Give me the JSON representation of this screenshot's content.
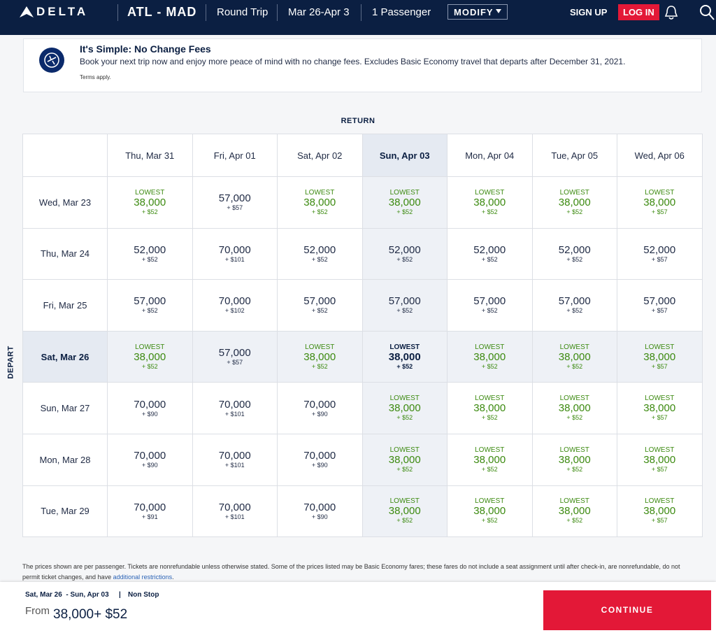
{
  "header": {
    "logo": "DELTA",
    "route": "ATL - MAD",
    "trip": "Round Trip",
    "dates": "Mar 26-Apr 3",
    "passengers": "1 Passenger",
    "modify": "MODIFY",
    "signup": "SIGN UP",
    "login": "LOG IN"
  },
  "banner": {
    "title": "It's Simple: No Change Fees",
    "text": "Book your next trip now and enjoy more peace of mind with no change fees. Excludes Basic Economy travel that departs after December 31, 2021.",
    "terms": "Terms apply."
  },
  "grid": {
    "return_label": "RETURN",
    "depart_label": "DEPART",
    "columns": [
      {
        "label": "Thu, Mar 31"
      },
      {
        "label": "Fri, Apr 01"
      },
      {
        "label": "Sat, Apr 02"
      },
      {
        "label": "Sun, Apr 03",
        "selected": true
      },
      {
        "label": "Mon, Apr 04"
      },
      {
        "label": "Tue, Apr 05"
      },
      {
        "label": "Wed, Apr 06"
      }
    ],
    "rows": [
      {
        "label": "Wed, Mar 23",
        "cells": [
          {
            "tag": "LOWEST",
            "miles": "38,000",
            "fee": "+ $52"
          },
          {
            "miles": "57,000",
            "fee": "+ $57"
          },
          {
            "tag": "LOWEST",
            "miles": "38,000",
            "fee": "+ $52"
          },
          {
            "tag": "LOWEST",
            "miles": "38,000",
            "fee": "+ $52"
          },
          {
            "tag": "LOWEST",
            "miles": "38,000",
            "fee": "+ $52"
          },
          {
            "tag": "LOWEST",
            "miles": "38,000",
            "fee": "+ $52"
          },
          {
            "tag": "LOWEST",
            "miles": "38,000",
            "fee": "+ $57"
          }
        ]
      },
      {
        "label": "Thu, Mar 24",
        "cells": [
          {
            "miles": "52,000",
            "fee": "+ $52"
          },
          {
            "miles": "70,000",
            "fee": "+ $101"
          },
          {
            "miles": "52,000",
            "fee": "+ $52"
          },
          {
            "miles": "52,000",
            "fee": "+ $52"
          },
          {
            "miles": "52,000",
            "fee": "+ $52"
          },
          {
            "miles": "52,000",
            "fee": "+ $52"
          },
          {
            "miles": "52,000",
            "fee": "+ $57"
          }
        ]
      },
      {
        "label": "Fri, Mar 25",
        "cells": [
          {
            "miles": "57,000",
            "fee": "+ $52"
          },
          {
            "miles": "70,000",
            "fee": "+ $102"
          },
          {
            "miles": "57,000",
            "fee": "+ $52"
          },
          {
            "miles": "57,000",
            "fee": "+ $52"
          },
          {
            "miles": "57,000",
            "fee": "+ $52"
          },
          {
            "miles": "57,000",
            "fee": "+ $52"
          },
          {
            "miles": "57,000",
            "fee": "+ $57"
          }
        ]
      },
      {
        "label": "Sat, Mar 26",
        "selected": true,
        "cells": [
          {
            "tag": "LOWEST",
            "miles": "38,000",
            "fee": "+ $52"
          },
          {
            "miles": "57,000",
            "fee": "+ $57"
          },
          {
            "tag": "LOWEST",
            "miles": "38,000",
            "fee": "+ $52"
          },
          {
            "tag": "LOWEST",
            "miles": "38,000",
            "fee": "+ $52"
          },
          {
            "tag": "LOWEST",
            "miles": "38,000",
            "fee": "+ $52"
          },
          {
            "tag": "LOWEST",
            "miles": "38,000",
            "fee": "+ $52"
          },
          {
            "tag": "LOWEST",
            "miles": "38,000",
            "fee": "+ $57"
          }
        ]
      },
      {
        "label": "Sun, Mar 27",
        "cells": [
          {
            "miles": "70,000",
            "fee": "+ $90"
          },
          {
            "miles": "70,000",
            "fee": "+ $101"
          },
          {
            "miles": "70,000",
            "fee": "+ $90"
          },
          {
            "tag": "LOWEST",
            "miles": "38,000",
            "fee": "+ $52"
          },
          {
            "tag": "LOWEST",
            "miles": "38,000",
            "fee": "+ $52"
          },
          {
            "tag": "LOWEST",
            "miles": "38,000",
            "fee": "+ $52"
          },
          {
            "tag": "LOWEST",
            "miles": "38,000",
            "fee": "+ $57"
          }
        ]
      },
      {
        "label": "Mon, Mar 28",
        "cells": [
          {
            "miles": "70,000",
            "fee": "+ $90"
          },
          {
            "miles": "70,000",
            "fee": "+ $101"
          },
          {
            "miles": "70,000",
            "fee": "+ $90"
          },
          {
            "tag": "LOWEST",
            "miles": "38,000",
            "fee": "+ $52"
          },
          {
            "tag": "LOWEST",
            "miles": "38,000",
            "fee": "+ $52"
          },
          {
            "tag": "LOWEST",
            "miles": "38,000",
            "fee": "+ $52"
          },
          {
            "tag": "LOWEST",
            "miles": "38,000",
            "fee": "+ $57"
          }
        ]
      },
      {
        "label": "Tue, Mar 29",
        "cells": [
          {
            "miles": "70,000",
            "fee": "+ $91"
          },
          {
            "miles": "70,000",
            "fee": "+ $101"
          },
          {
            "miles": "70,000",
            "fee": "+ $90"
          },
          {
            "tag": "LOWEST",
            "miles": "38,000",
            "fee": "+ $52"
          },
          {
            "tag": "LOWEST",
            "miles": "38,000",
            "fee": "+ $52"
          },
          {
            "tag": "LOWEST",
            "miles": "38,000",
            "fee": "+ $52"
          },
          {
            "tag": "LOWEST",
            "miles": "38,000",
            "fee": "+ $57"
          }
        ]
      }
    ]
  },
  "note": {
    "text": "The prices shown are per passenger. Tickets are nonrefundable unless otherwise stated. Some of the prices listed may be Basic Economy fares; these fares do not include a seat assignment until after check-in, are nonrefundable, do not permit ticket changes, and have ",
    "link": "additional restrictions",
    "end": "."
  },
  "summary": {
    "dates": "Sat, Mar 26  - Sun, Apr 03",
    "stops": "Non Stop",
    "from": "From",
    "price": "38,000+ $52",
    "continue": "CONTINUE"
  }
}
